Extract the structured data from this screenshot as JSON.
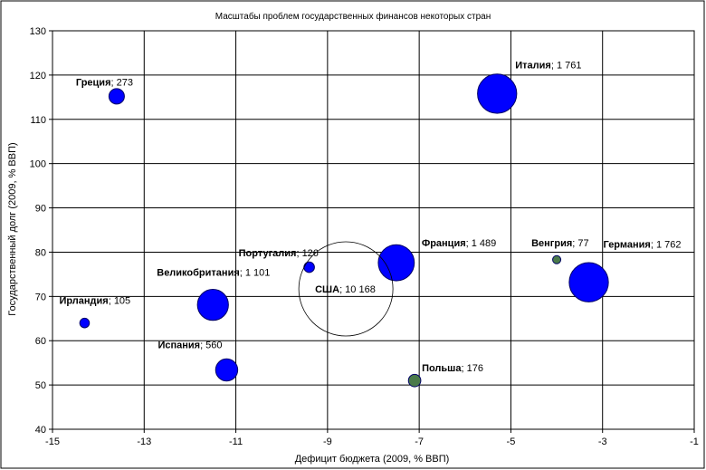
{
  "chart_data": {
    "type": "bubble",
    "title": "Масштабы проблем государственных финансов некоторых  стран",
    "xlabel": "Дефицит бюджета (2009, % ВВП)",
    "ylabel": "Государственный долг (2009, % ВВП)",
    "xlim": [
      -15,
      -1
    ],
    "ylim": [
      40,
      130
    ],
    "xticks": [
      -15,
      -13,
      -11,
      -9,
      -7,
      -5,
      -3,
      -1
    ],
    "yticks": [
      40,
      50,
      60,
      70,
      80,
      90,
      100,
      110,
      120,
      130
    ],
    "grid": true,
    "points": [
      {
        "label": "Греция",
        "size_text": "273",
        "size": 273,
        "x": -13.6,
        "y": 115.2,
        "color": "#0000ff"
      },
      {
        "label": "Италия",
        "size_text": "1 761",
        "size": 1761,
        "x": -5.3,
        "y": 115.8,
        "color": "#0000ff"
      },
      {
        "label": "Португалия",
        "size_text": "126",
        "size": 126,
        "x": -9.4,
        "y": 76.6,
        "color": "#0000ff"
      },
      {
        "label": "Франция",
        "size_text": "1 489",
        "size": 1489,
        "x": -7.5,
        "y": 77.6,
        "color": "#0000ff"
      },
      {
        "label": "Венгрия",
        "size_text": "77",
        "size": 77,
        "x": -4.0,
        "y": 78.3,
        "color": "#4a7a4a"
      },
      {
        "label": "Германия",
        "size_text": "1 762",
        "size": 1762,
        "x": -3.3,
        "y": 73.2,
        "color": "#0000ff"
      },
      {
        "label": "Великобритания",
        "size_text": "1 101",
        "size": 1101,
        "x": -11.5,
        "y": 68.1,
        "color": "#0000ff"
      },
      {
        "label": "США",
        "size_text": "10 168",
        "size": 10168,
        "x": -8.6,
        "y": 71.7,
        "color": "none"
      },
      {
        "label": "Ирландия",
        "size_text": "105",
        "size": 105,
        "x": -14.3,
        "y": 64.0,
        "color": "#0000ff"
      },
      {
        "label": "Испания",
        "size_text": "560",
        "size": 560,
        "x": -11.2,
        "y": 53.4,
        "color": "#0000ff"
      },
      {
        "label": "Польша",
        "size_text": "176",
        "size": 176,
        "x": -7.1,
        "y": 51.0,
        "color": "#4a7a4a"
      }
    ]
  }
}
